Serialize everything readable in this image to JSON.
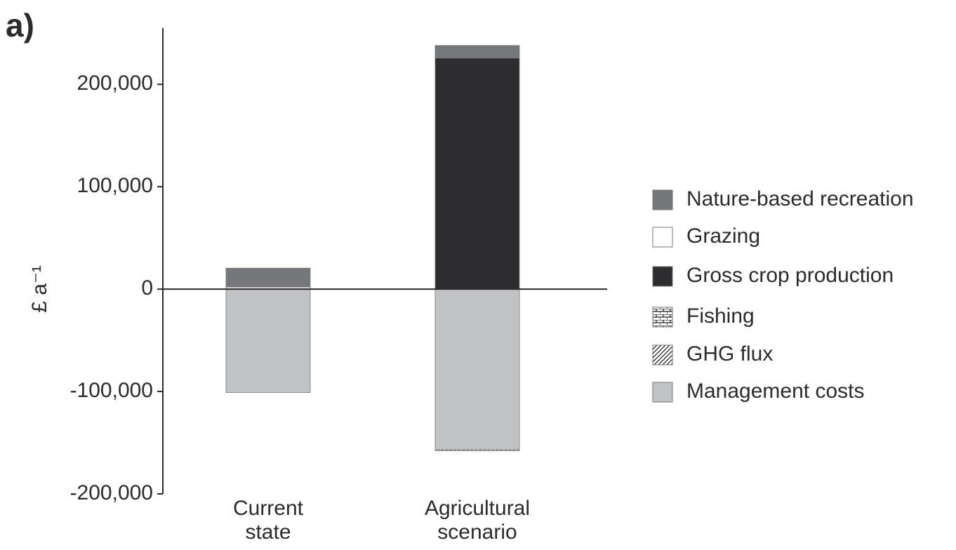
{
  "chart_data": {
    "type": "stacked_bar",
    "panel_label": "a)",
    "ylabel": "£ a⁻¹",
    "categories": [
      "Current state",
      "Agricultural scenario"
    ],
    "series": [
      {
        "name": "Nature-based recreation",
        "color": "#76777b",
        "values": [
          18500,
          12300
        ]
      },
      {
        "name": "Grazing",
        "color": "#ffffff",
        "values": [
          1500,
          0
        ]
      },
      {
        "name": "Gross crop production",
        "color": "#2d2c2e",
        "values": [
          0,
          225700
        ]
      },
      {
        "name": "Fishing",
        "color": "#ffffff",
        "pattern": "brick",
        "values": [
          0,
          0
        ]
      },
      {
        "name": "GHG flux",
        "color": "#ffffff",
        "pattern": "hatch",
        "values": [
          500,
          -800
        ]
      },
      {
        "name": "Management costs",
        "color": "#c1c2c4",
        "values": [
          -101000,
          -157000
        ]
      }
    ],
    "ylim": [
      -200000,
      255000
    ],
    "yticks": [
      {
        "value": 200000,
        "label": "200,000"
      },
      {
        "value": 100000,
        "label": "100,000"
      },
      0,
      {
        "value": -100000,
        "label": "-100,000"
      },
      {
        "value": -200000,
        "label": "-200,000"
      }
    ]
  }
}
